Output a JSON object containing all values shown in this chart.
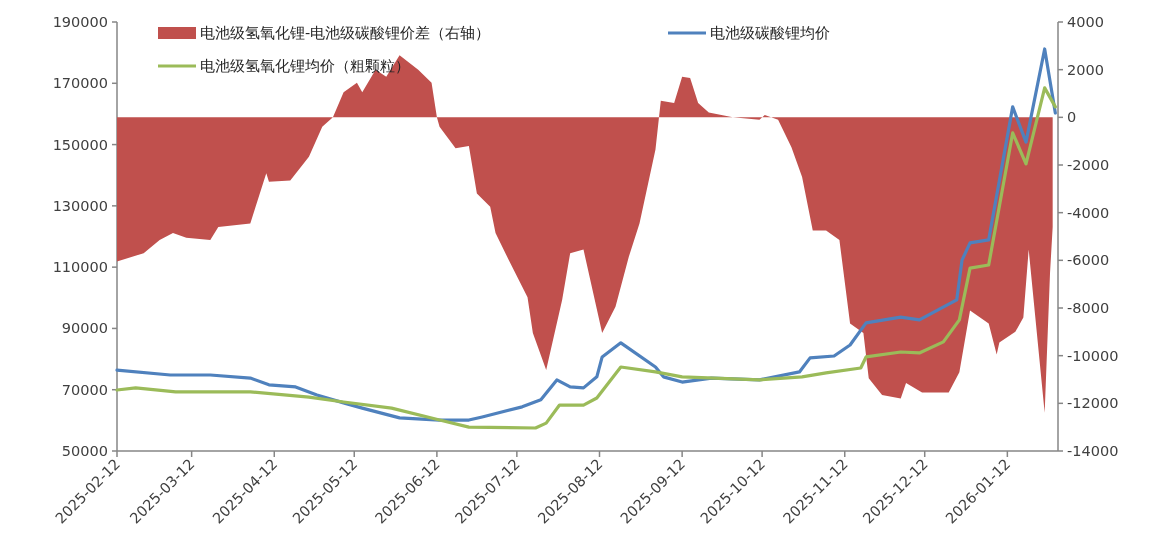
{
  "chart_data": {
    "type": "line",
    "xlim": [
      "2025-02-12",
      "2026-01-31"
    ],
    "xticks": [
      "2025-02-12",
      "2025-03-12",
      "2025-04-12",
      "2025-05-12",
      "2025-06-12",
      "2025-07-12",
      "2025-08-12",
      "2025-09-12",
      "2025-10-12",
      "2025-11-12",
      "2025-12-12",
      "2026-01-12"
    ],
    "ylim": [
      50000,
      190000
    ],
    "yticks": [
      50000,
      70000,
      90000,
      110000,
      130000,
      150000,
      170000,
      190000
    ],
    "y2lim": [
      -14000,
      4000
    ],
    "y2ticks": [
      -14000,
      -12000,
      -10000,
      -8000,
      -6000,
      -4000,
      -2000,
      0,
      2000,
      4000
    ],
    "grid": false,
    "legend": "top",
    "marker": "none",
    "series": [
      {
        "name": "电池级氢氧化锂-电池级碳酸锂价差（右轴）",
        "type": "area",
        "axis": "y2",
        "color": "#c0504d",
        "x": [
          "2025-02-12",
          "2025-02-22",
          "2025-02-28",
          "2025-03-05",
          "2025-03-10",
          "2025-03-19",
          "2025-03-22",
          "2025-04-03",
          "2025-04-09",
          "2025-04-10",
          "2025-04-18",
          "2025-04-25",
          "2025-04-30",
          "2025-05-04",
          "2025-05-08",
          "2025-05-13",
          "2025-05-15",
          "2025-05-20",
          "2025-05-24",
          "2025-05-29",
          "2025-06-05",
          "2025-06-10",
          "2025-06-12",
          "2025-06-13",
          "2025-06-19",
          "2025-06-24",
          "2025-06-27",
          "2025-07-02",
          "2025-07-04",
          "2025-07-09",
          "2025-07-16",
          "2025-07-18",
          "2025-07-23",
          "2025-07-29",
          "2025-08-01",
          "2025-08-06",
          "2025-08-13",
          "2025-08-18",
          "2025-08-23",
          "2025-08-27",
          "2025-09-02",
          "2025-09-04",
          "2025-09-09",
          "2025-09-12",
          "2025-09-15",
          "2025-09-18",
          "2025-09-22",
          "2025-10-01",
          "2025-10-11",
          "2025-10-13",
          "2025-10-18",
          "2025-10-23",
          "2025-10-27",
          "2025-10-31",
          "2025-11-05",
          "2025-11-10",
          "2025-11-14",
          "2025-11-19",
          "2025-11-21",
          "2025-11-26",
          "2025-12-03",
          "2025-12-05",
          "2025-12-11",
          "2025-12-21",
          "2025-12-25",
          "2025-12-29",
          "2026-01-05",
          "2026-01-08",
          "2026-01-09",
          "2026-01-15",
          "2026-01-18",
          "2026-01-20",
          "2026-01-26",
          "2026-01-28",
          "2026-01-29"
        ],
        "values": [
          -6050,
          -5700,
          -5150,
          -4850,
          -5050,
          -5150,
          -4600,
          -4450,
          -2350,
          -2700,
          -2650,
          -1650,
          -400,
          0,
          1050,
          1450,
          1050,
          2000,
          1700,
          2600,
          2000,
          1450,
          0,
          -400,
          -1300,
          -1200,
          -3200,
          -3750,
          -4850,
          -6000,
          -7550,
          -9050,
          -10600,
          -7650,
          -5700,
          -5550,
          -9050,
          -7950,
          -5850,
          -4450,
          -1350,
          700,
          600,
          1700,
          1650,
          600,
          200,
          0,
          -100,
          100,
          -100,
          -1250,
          -2500,
          -4750,
          -4750,
          -5150,
          -8650,
          -9050,
          -10950,
          -11650,
          -11800,
          -11150,
          -11550,
          -11550,
          -10700,
          -8100,
          -8650,
          -9950,
          -9450,
          -9000,
          -8400,
          -5550,
          -12400,
          -6550,
          -4600
        ]
      },
      {
        "name": "电池级碳酸锂均价",
        "color": "#4f81bd",
        "x": [
          "2025-02-12",
          "2025-03-04",
          "2025-03-19",
          "2025-04-03",
          "2025-04-10",
          "2025-04-20",
          "2025-04-28",
          "2025-05-08",
          "2025-05-15",
          "2025-05-29",
          "2025-06-13",
          "2025-06-24",
          "2025-06-29",
          "2025-07-14",
          "2025-07-21",
          "2025-07-27",
          "2025-08-01",
          "2025-08-06",
          "2025-08-11",
          "2025-08-13",
          "2025-08-20",
          "2025-09-02",
          "2025-09-05",
          "2025-09-12",
          "2025-09-23",
          "2025-10-11",
          "2025-10-26",
          "2025-10-30",
          "2025-11-08",
          "2025-11-14",
          "2025-11-20",
          "2025-12-03",
          "2025-12-10",
          "2025-12-24",
          "2025-12-26",
          "2025-12-29",
          "2026-01-05",
          "2026-01-14",
          "2026-01-19",
          "2026-01-26",
          "2026-01-30"
        ],
        "values": [
          76400,
          74800,
          74800,
          73800,
          71600,
          70900,
          68300,
          65700,
          64000,
          60800,
          60100,
          60100,
          61100,
          64400,
          66700,
          73200,
          70900,
          70600,
          74200,
          80700,
          85300,
          77400,
          74200,
          72500,
          73800,
          73200,
          75800,
          80400,
          81000,
          84600,
          91800,
          93700,
          92800,
          99300,
          112300,
          117900,
          118900,
          162300,
          150800,
          181200,
          160300
        ]
      },
      {
        "name": "电池级氢氧化锂均价（粗颗粒）",
        "color": "#9bbb59",
        "x": [
          "2025-02-12",
          "2025-02-19",
          "2025-03-06",
          "2025-04-03",
          "2025-04-25",
          "2025-05-08",
          "2025-05-26",
          "2025-06-13",
          "2025-06-24",
          "2025-07-19",
          "2025-07-23",
          "2025-07-28",
          "2025-08-06",
          "2025-08-11",
          "2025-08-20",
          "2025-09-02",
          "2025-09-12",
          "2025-10-11",
          "2025-10-27",
          "2025-11-05",
          "2025-11-18",
          "2025-11-20",
          "2025-12-03",
          "2025-12-10",
          "2025-12-19",
          "2025-12-25",
          "2025-12-29",
          "2026-01-05",
          "2026-01-14",
          "2026-01-19",
          "2026-01-26",
          "2026-01-30"
        ],
        "values": [
          69900,
          70600,
          69300,
          69300,
          67600,
          66000,
          64000,
          60100,
          57800,
          57500,
          59100,
          65000,
          65000,
          67300,
          77400,
          75800,
          74200,
          73200,
          74200,
          75500,
          77100,
          80700,
          82300,
          82000,
          85600,
          92800,
          109700,
          110700,
          153800,
          143700,
          168500,
          162300
        ]
      }
    ]
  }
}
